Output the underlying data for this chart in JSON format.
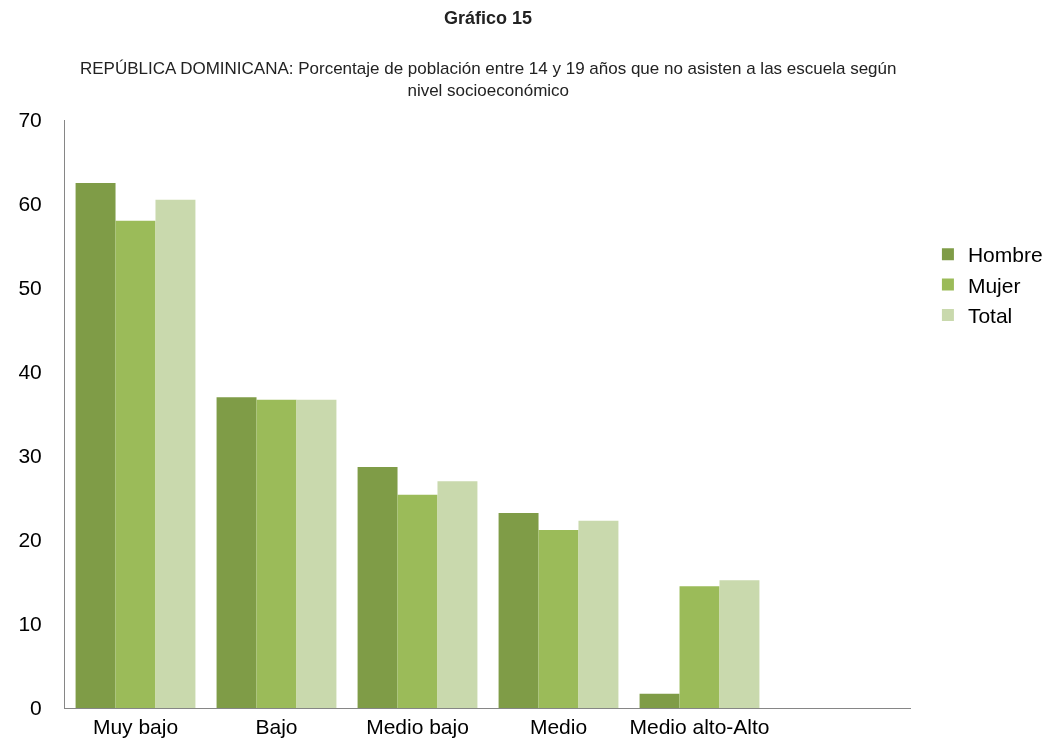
{
  "chart_data": {
    "type": "bar",
    "title": "Gráfico 15",
    "subtitle": "REPÚBLICA DOMINICANA: Porcentaje de población entre 14 y 19 años que no asisten a las escuela según nivel socioeconómico",
    "categories": [
      "Muy bajo",
      "Bajo",
      "Medio bajo",
      "Medio",
      "Medio alto-Alto",
      null
    ],
    "series": [
      {
        "name": "Hombre",
        "color": "#7f9c47",
        "values": [
          62.5,
          37.0,
          28.7,
          23.2,
          1.7,
          null
        ]
      },
      {
        "name": "Mujer",
        "color": "#9bbb59",
        "values": [
          58.0,
          36.7,
          25.4,
          21.2,
          14.5,
          null
        ]
      },
      {
        "name": "Total",
        "color": "#c9d9ad",
        "values": [
          60.5,
          36.7,
          27.0,
          22.3,
          15.2,
          null
        ]
      }
    ],
    "ylim": [
      0,
      70
    ],
    "yticks": [
      0,
      10,
      20,
      30,
      40,
      50,
      60,
      70
    ],
    "grid": false,
    "legend": "right"
  }
}
